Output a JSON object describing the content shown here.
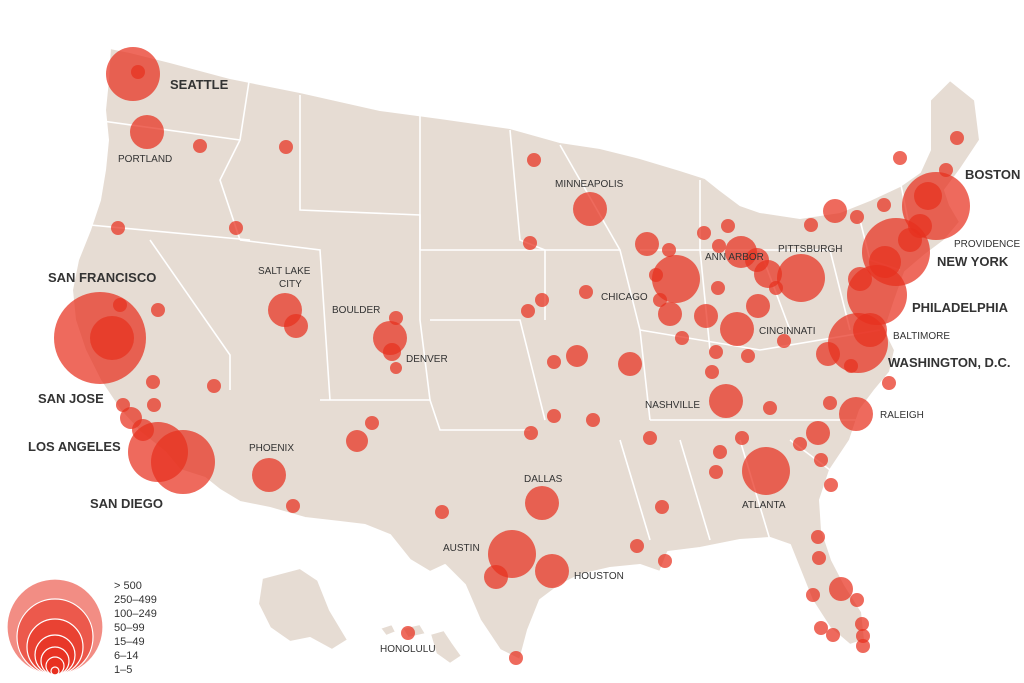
{
  "colors": {
    "land": "#e6dcd3",
    "border": "#ffffff",
    "bubble": "#e8301f",
    "text": "#333333"
  },
  "legend": {
    "items": [
      "> 500",
      "250–499",
      "100–249",
      "50–99",
      "15–49",
      "6–14",
      "1–5"
    ]
  },
  "labels": {
    "seattle": "SEATTLE",
    "portland": "PORTLAND",
    "san_francisco": "SAN FRANCISCO",
    "san_jose": "SAN JOSE",
    "los_angeles": "LOS ANGELES",
    "san_diego": "SAN DIEGO",
    "salt_lake_city_1": "SALT LAKE",
    "salt_lake_city_2": "CITY",
    "boulder": "BOULDER",
    "denver": "DENVER",
    "phoenix": "PHOENIX",
    "minneapolis": "MINNEAPOLIS",
    "chicago": "CHICAGO",
    "ann_arbor": "ANN ARBOR",
    "pittsburgh": "PITTSBURGH",
    "cincinnati": "CINCINNATI",
    "nashville": "NASHVILLE",
    "dallas": "DALLAS",
    "austin": "AUSTIN",
    "houston": "HOUSTON",
    "atlanta": "ATLANTA",
    "raleigh": "RALEIGH",
    "boston": "BOSTON",
    "providence": "PROVIDENCE",
    "new_york": "NEW YORK",
    "philadelphia": "PHILADELPHIA",
    "baltimore": "BALTIMORE",
    "washington_dc": "WASHINGTON, D.C.",
    "honolulu": "HONOLULU"
  }
}
